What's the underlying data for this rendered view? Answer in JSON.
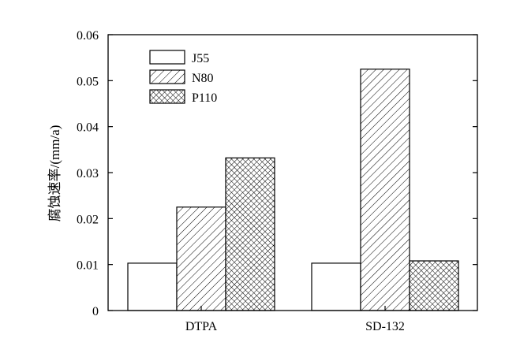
{
  "chart_data": {
    "type": "bar",
    "categories": [
      "DTPA",
      "SD-132"
    ],
    "series": [
      {
        "name": "J55",
        "values": [
          0.0103,
          0.0103
        ],
        "pattern": "none"
      },
      {
        "name": "N80",
        "values": [
          0.0225,
          0.0525
        ],
        "pattern": "diagonal-hatch"
      },
      {
        "name": "P110",
        "values": [
          0.0332,
          0.0108
        ],
        "pattern": "cross-hatch"
      }
    ],
    "title": "",
    "xlabel": "",
    "ylabel": "腐蚀速率/(mm/a)",
    "ylim": [
      0,
      0.06
    ],
    "yticks": [
      "0",
      "0.01",
      "0.02",
      "0.03",
      "0.04",
      "0.05",
      "0.06"
    ],
    "grid": false,
    "legend_position": "top-left"
  }
}
